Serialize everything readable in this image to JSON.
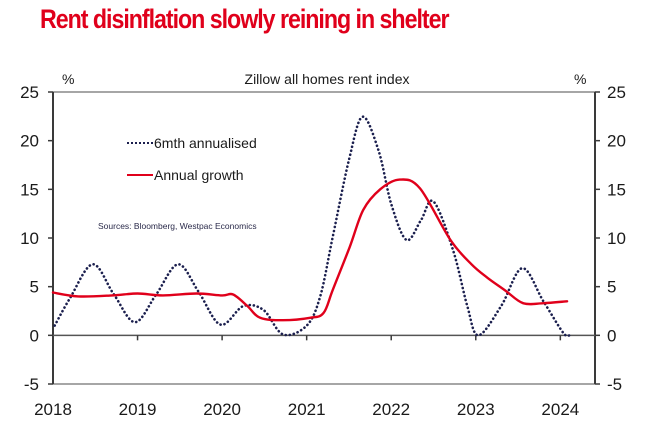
{
  "headline": "Rent disinflation slowly reining in shelter",
  "chart_data": {
    "type": "line",
    "title": "Zillow all homes rent index",
    "xlabel": "",
    "ylabel_left": "%",
    "ylabel_right": "%",
    "ylim": [
      -5,
      25
    ],
    "yticks": [
      -5,
      0,
      5,
      10,
      15,
      20,
      25
    ],
    "ytick_labels": [
      "-5",
      "0",
      "5",
      "10",
      "15",
      "20",
      "25"
    ],
    "xlim": [
      2018,
      2024.41
    ],
    "xticks": [
      2018,
      2019,
      2020,
      2021,
      2022,
      2023,
      2024
    ],
    "xtick_labels": [
      "2018",
      "2019",
      "2020",
      "2021",
      "2022",
      "2023",
      "2024"
    ],
    "grid": false,
    "legend_position": "top-left",
    "source_note": "Sources: Bloomberg, Westpac Economics",
    "series": [
      {
        "name": "6mth annualised",
        "style": "dotted",
        "color": "#1b1f4e",
        "x": [
          2018.02,
          2018.2,
          2018.47,
          2018.72,
          2018.97,
          2019.22,
          2019.48,
          2019.72,
          2019.98,
          2020.25,
          2020.49,
          2020.72,
          2021.0,
          2021.16,
          2021.31,
          2021.5,
          2021.66,
          2021.85,
          2022.0,
          2022.18,
          2022.35,
          2022.5,
          2022.73,
          2022.9,
          2023.03,
          2023.3,
          2023.55,
          2023.8,
          2024.04,
          2024.12
        ],
        "values": [
          1.0,
          3.8,
          7.3,
          4.2,
          1.35,
          4.2,
          7.3,
          4.5,
          1.1,
          3.0,
          2.6,
          0.1,
          1.0,
          4.0,
          10.2,
          18.0,
          22.45,
          19.0,
          13.5,
          9.8,
          11.8,
          13.75,
          8.8,
          3.0,
          0.0,
          3.0,
          6.9,
          3.5,
          0.2,
          0.1
        ]
      },
      {
        "name": "Annual growth",
        "style": "solid",
        "color": "#e0001b",
        "x": [
          2018.0,
          2018.3,
          2018.7,
          2019.0,
          2019.3,
          2019.7,
          2020.0,
          2020.13,
          2020.3,
          2020.45,
          2020.72,
          2021.04,
          2021.2,
          2021.31,
          2021.51,
          2021.67,
          2021.87,
          2022.1,
          2022.34,
          2022.7,
          2022.95,
          2023.14,
          2023.35,
          2023.56,
          2023.8,
          2024.08
        ],
        "values": [
          4.4,
          4.0,
          4.1,
          4.3,
          4.1,
          4.3,
          4.1,
          4.2,
          3.0,
          1.8,
          1.55,
          1.8,
          2.3,
          4.7,
          9.1,
          12.9,
          15.0,
          16.0,
          15.1,
          9.8,
          7.3,
          5.9,
          4.6,
          3.3,
          3.3,
          3.5
        ]
      }
    ]
  }
}
